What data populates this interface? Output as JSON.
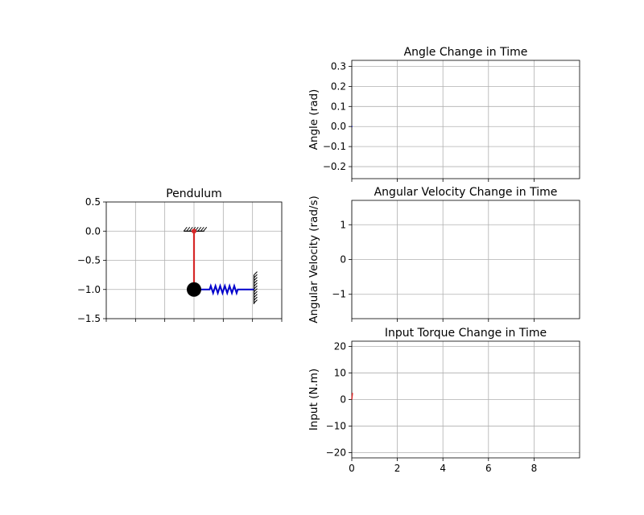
{
  "chart_data": [
    {
      "id": "pendulum",
      "type": "scatter",
      "title": "Pendulum",
      "xlim": [
        -3,
        3
      ],
      "ylim": [
        -1.5,
        0.5
      ],
      "grid": true,
      "x_ticks": [
        -3,
        -2,
        -1,
        0,
        1,
        2,
        3
      ],
      "x_tick_labels_shown": false,
      "y_ticks": [
        0.5,
        0.0,
        -0.5,
        -1.0,
        -1.5
      ],
      "y_tick_labels": [
        "0.5",
        "0.0",
        "−0.5",
        "−1.0",
        "−1.5"
      ],
      "rod": {
        "x": [
          0,
          0
        ],
        "y": [
          0,
          -1
        ],
        "color": "#d62728"
      },
      "pivot": {
        "x": 0,
        "y": 0,
        "color": "#d62728"
      },
      "ceiling_mount": {
        "x": [
          -0.35,
          0.35
        ],
        "y": 0
      },
      "bob": {
        "x": 0,
        "y": -1,
        "color": "#000000"
      },
      "spring": {
        "x_start": 0,
        "x_end": 2.05,
        "y": -1,
        "color": "#0000cc"
      },
      "wall": {
        "x": 2.05,
        "y": [
          -1.25,
          -0.75
        ]
      }
    },
    {
      "id": "angle",
      "type": "line",
      "title": "Angle Change in Time",
      "ylabel": "Angle (rad)",
      "xlim": [
        0,
        10
      ],
      "ylim": [
        -0.26,
        0.33
      ],
      "grid": true,
      "x_ticks": [
        0,
        2,
        4,
        6,
        8
      ],
      "x_tick_labels_shown": false,
      "y_ticks": [
        0.3,
        0.2,
        0.1,
        0.0,
        -0.1,
        -0.2
      ],
      "y_tick_labels": [
        "0.3",
        "0.2",
        "0.1",
        "0.0",
        "−0.1",
        "−0.2"
      ],
      "series": [
        {
          "x": [
            0,
            0.03
          ],
          "y": [
            0,
            0
          ],
          "color": "#1f1fcc"
        }
      ]
    },
    {
      "id": "velocity",
      "type": "line",
      "title": "Angular Velocity Change in Time",
      "ylabel": "Angular Velocity (rad/s)",
      "xlim": [
        0,
        10
      ],
      "ylim": [
        -1.7,
        1.7
      ],
      "grid": true,
      "x_ticks": [
        0,
        2,
        4,
        6,
        8
      ],
      "x_tick_labels_shown": false,
      "y_ticks": [
        1,
        0,
        -1
      ],
      "y_tick_labels": [
        "1",
        "0",
        "−1"
      ],
      "series": []
    },
    {
      "id": "torque",
      "type": "line",
      "title": "Input Torque Change in Time",
      "ylabel": "Input (N.m)",
      "xlim": [
        0,
        10
      ],
      "ylim": [
        -22,
        22
      ],
      "grid": true,
      "x_ticks": [
        0,
        2,
        4,
        6,
        8
      ],
      "x_tick_labels": [
        "0",
        "2",
        "4",
        "6",
        "8"
      ],
      "x_tick_labels_shown": true,
      "y_ticks": [
        20,
        10,
        0,
        -10,
        -20
      ],
      "y_tick_labels": [
        "20",
        "10",
        "0",
        "−10",
        "−20"
      ],
      "series": [
        {
          "x": [
            0,
            0.03
          ],
          "y": [
            0,
            2.5
          ],
          "color": "#d62728"
        }
      ]
    }
  ]
}
